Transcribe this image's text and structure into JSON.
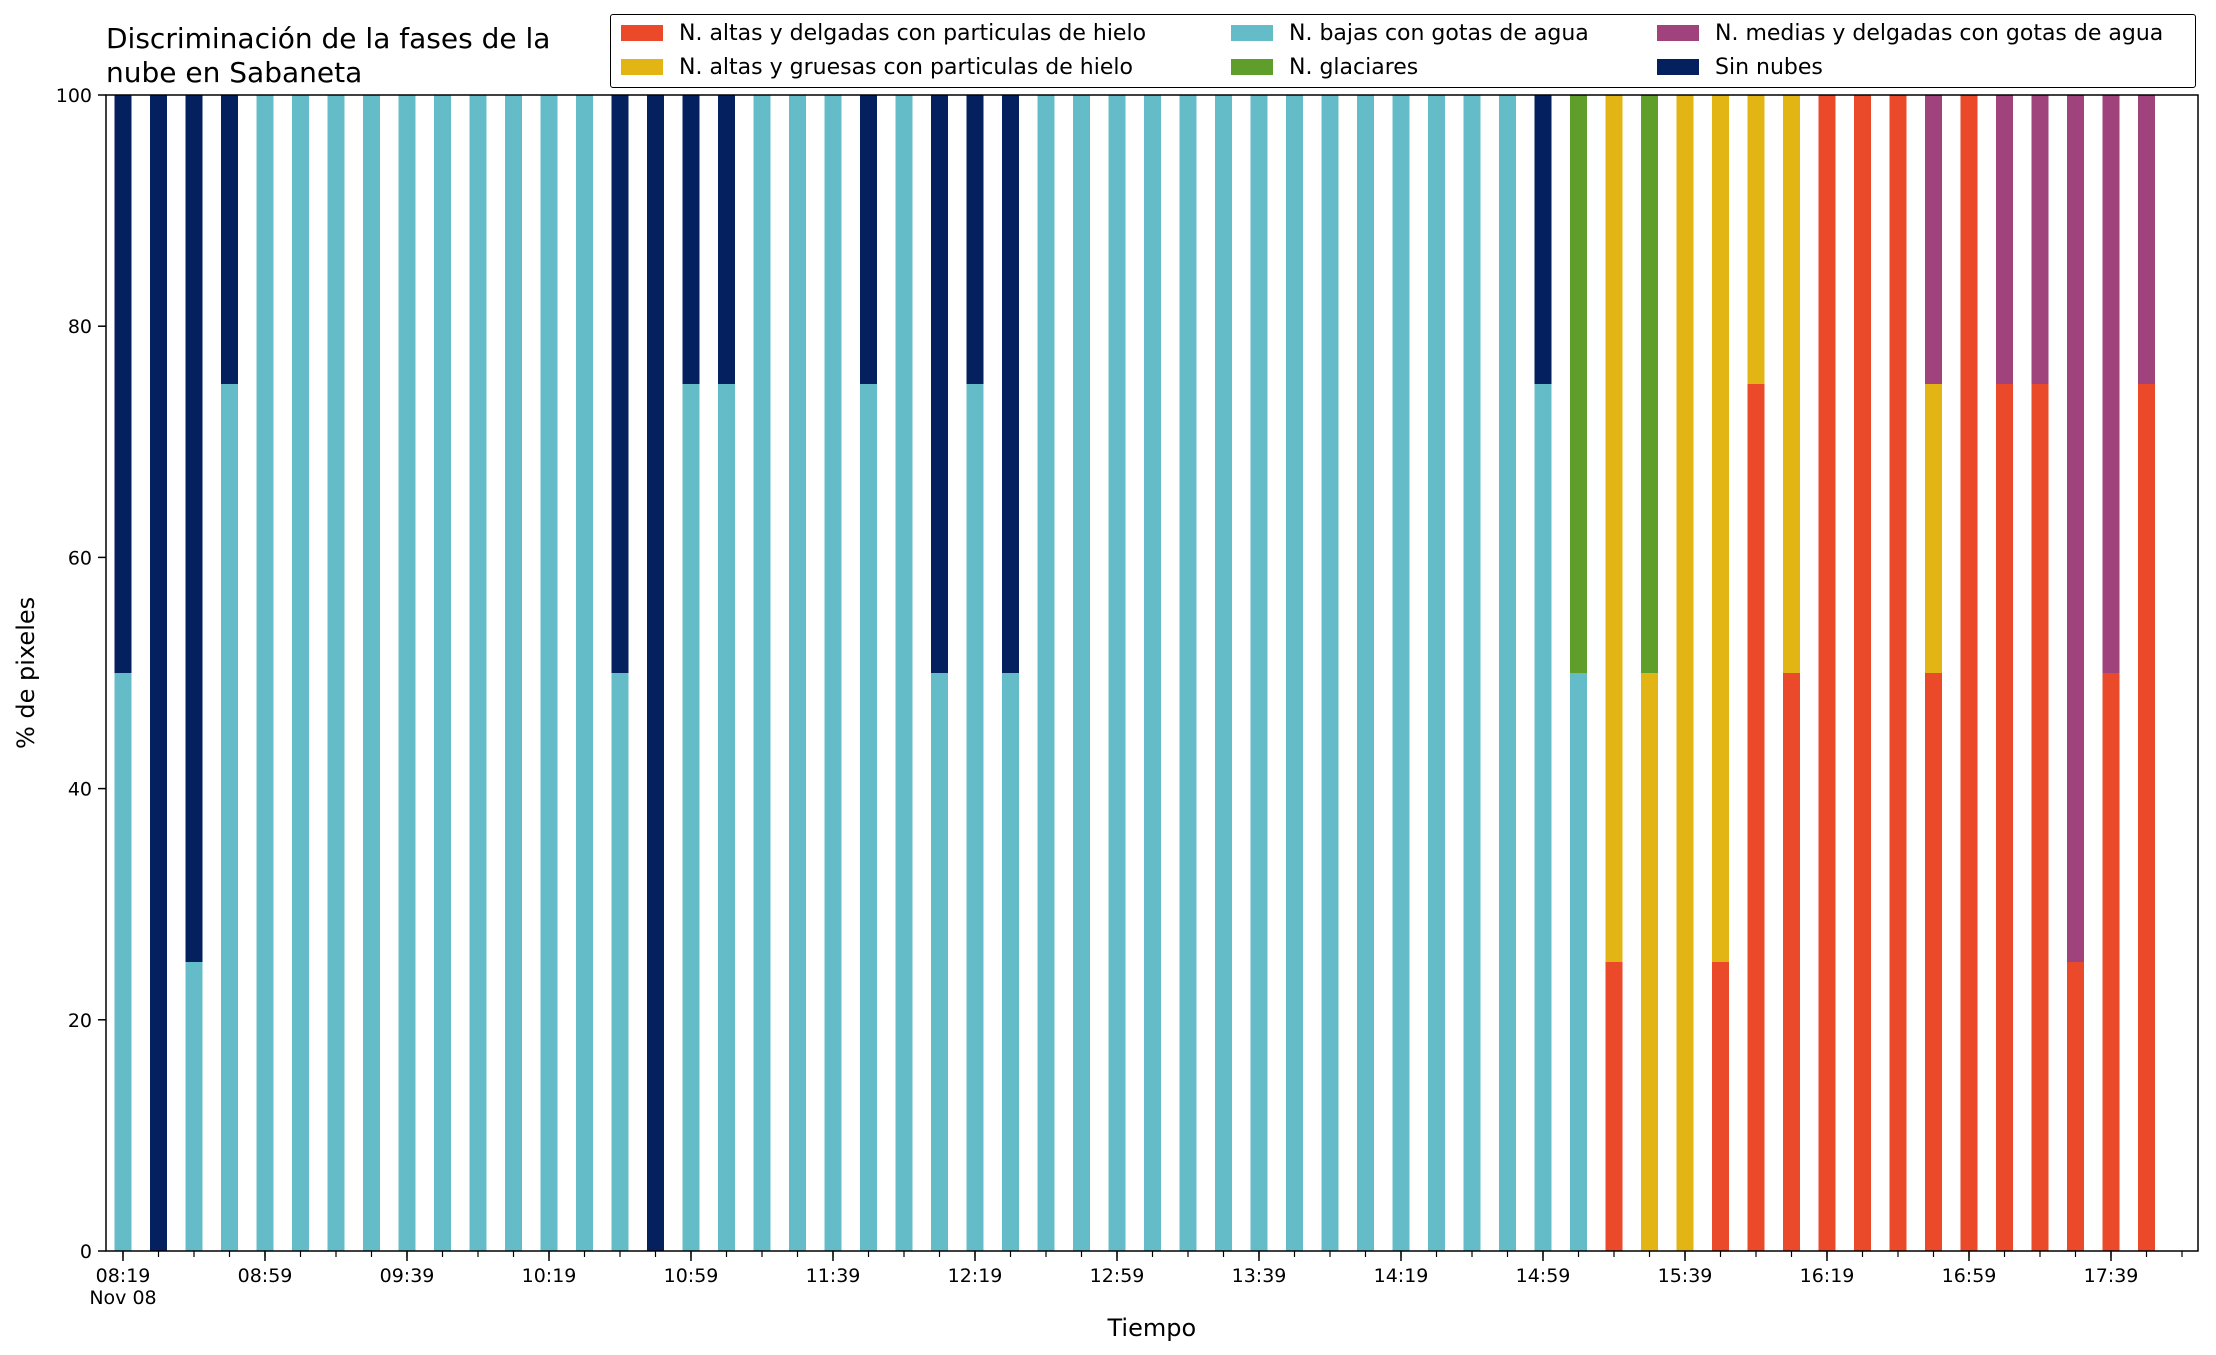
{
  "chart_data": {
    "type": "bar",
    "stacked": true,
    "title": "Discriminación de la fases de la\nnube en Sabaneta",
    "xlabel": "Tiempo",
    "ylabel": "% de pixeles",
    "ylim": [
      0,
      100
    ],
    "yticks": [
      "0",
      "20",
      "40",
      "60",
      "80",
      "100"
    ],
    "xtick_labels": [
      "08:19\nNov 08",
      "08:59",
      "09:39",
      "10:19",
      "10:59",
      "11:39",
      "12:19",
      "12:59",
      "13:39",
      "14:19",
      "14:59",
      "15:39",
      "16:19",
      "16:59",
      "17:39"
    ],
    "legend_position": "top-right",
    "legend_columns": 3,
    "grid": false,
    "categories": [
      "08:19",
      "08:29",
      "08:39",
      "08:49",
      "08:59",
      "09:09",
      "09:19",
      "09:29",
      "09:39",
      "09:49",
      "09:59",
      "10:09",
      "10:19",
      "10:29",
      "10:39",
      "10:49",
      "10:59",
      "11:09",
      "11:19",
      "11:29",
      "11:39",
      "11:49",
      "11:59",
      "12:09",
      "12:19",
      "12:29",
      "12:39",
      "12:49",
      "12:59",
      "13:09",
      "13:19",
      "13:29",
      "13:39",
      "13:49",
      "13:59",
      "14:09",
      "14:19",
      "14:29",
      "14:39",
      "14:49",
      "14:59",
      "15:09",
      "15:19",
      "15:29",
      "15:39",
      "15:49",
      "15:59",
      "16:09",
      "16:19",
      "16:29",
      "16:39",
      "16:49",
      "16:59",
      "17:09",
      "17:19",
      "17:29",
      "17:39",
      "17:49"
    ],
    "series": [
      {
        "name": "N. altas y delgadas con particulas de hielo",
        "color": "#ea4a2a",
        "values": [
          0,
          0,
          0,
          0,
          0,
          0,
          0,
          0,
          0,
          0,
          0,
          0,
          0,
          0,
          0,
          0,
          0,
          0,
          0,
          0,
          0,
          0,
          0,
          0,
          0,
          0,
          0,
          0,
          0,
          0,
          0,
          0,
          0,
          0,
          0,
          0,
          0,
          0,
          0,
          0,
          0,
          0,
          25,
          0,
          0,
          25,
          75,
          50,
          100,
          100,
          100,
          50,
          100,
          75,
          75,
          25,
          50,
          75
        ]
      },
      {
        "name": "N. altas y gruesas con particulas de hielo",
        "color": "#e3b514",
        "values": [
          0,
          0,
          0,
          0,
          0,
          0,
          0,
          0,
          0,
          0,
          0,
          0,
          0,
          0,
          0,
          0,
          0,
          0,
          0,
          0,
          0,
          0,
          0,
          0,
          0,
          0,
          0,
          0,
          0,
          0,
          0,
          0,
          0,
          0,
          0,
          0,
          0,
          0,
          0,
          0,
          0,
          0,
          75,
          50,
          100,
          75,
          25,
          50,
          0,
          0,
          0,
          25,
          0,
          0,
          0,
          0,
          0,
          0
        ]
      },
      {
        "name": "N. bajas con gotas de agua",
        "color": "#64bcc8",
        "values": [
          50,
          0,
          25,
          75,
          100,
          100,
          100,
          100,
          100,
          100,
          100,
          100,
          100,
          100,
          50,
          0,
          75,
          75,
          100,
          100,
          100,
          75,
          100,
          50,
          75,
          50,
          100,
          100,
          100,
          100,
          100,
          100,
          100,
          100,
          100,
          100,
          100,
          100,
          100,
          100,
          75,
          50,
          0,
          0,
          0,
          0,
          0,
          0,
          0,
          0,
          0,
          0,
          0,
          0,
          0,
          0,
          0,
          0
        ]
      },
      {
        "name": "N. glaciares",
        "color": "#5f9e2a",
        "values": [
          0,
          0,
          0,
          0,
          0,
          0,
          0,
          0,
          0,
          0,
          0,
          0,
          0,
          0,
          0,
          0,
          0,
          0,
          0,
          0,
          0,
          0,
          0,
          0,
          0,
          0,
          0,
          0,
          0,
          0,
          0,
          0,
          0,
          0,
          0,
          0,
          0,
          0,
          0,
          0,
          0,
          50,
          0,
          50,
          0,
          0,
          0,
          0,
          0,
          0,
          0,
          0,
          0,
          0,
          0,
          0,
          0,
          0
        ]
      },
      {
        "name": "N. medias y delgadas con gotas de agua",
        "color": "#a0427b",
        "values": [
          0,
          0,
          0,
          0,
          0,
          0,
          0,
          0,
          0,
          0,
          0,
          0,
          0,
          0,
          0,
          0,
          0,
          0,
          0,
          0,
          0,
          0,
          0,
          0,
          0,
          0,
          0,
          0,
          0,
          0,
          0,
          0,
          0,
          0,
          0,
          0,
          0,
          0,
          0,
          0,
          0,
          0,
          0,
          0,
          0,
          0,
          0,
          0,
          0,
          0,
          0,
          25,
          0,
          25,
          25,
          75,
          50,
          25
        ]
      },
      {
        "name": "Sin nubes",
        "color": "#04205e",
        "values": [
          50,
          100,
          75,
          25,
          0,
          0,
          0,
          0,
          0,
          0,
          0,
          0,
          0,
          0,
          50,
          100,
          25,
          25,
          0,
          0,
          0,
          25,
          0,
          50,
          25,
          50,
          0,
          0,
          0,
          0,
          0,
          0,
          0,
          0,
          0,
          0,
          0,
          0,
          0,
          0,
          25,
          0,
          0,
          0,
          0,
          0,
          0,
          0,
          0,
          0,
          0,
          0,
          0,
          0,
          0,
          0,
          0,
          0
        ]
      }
    ]
  }
}
